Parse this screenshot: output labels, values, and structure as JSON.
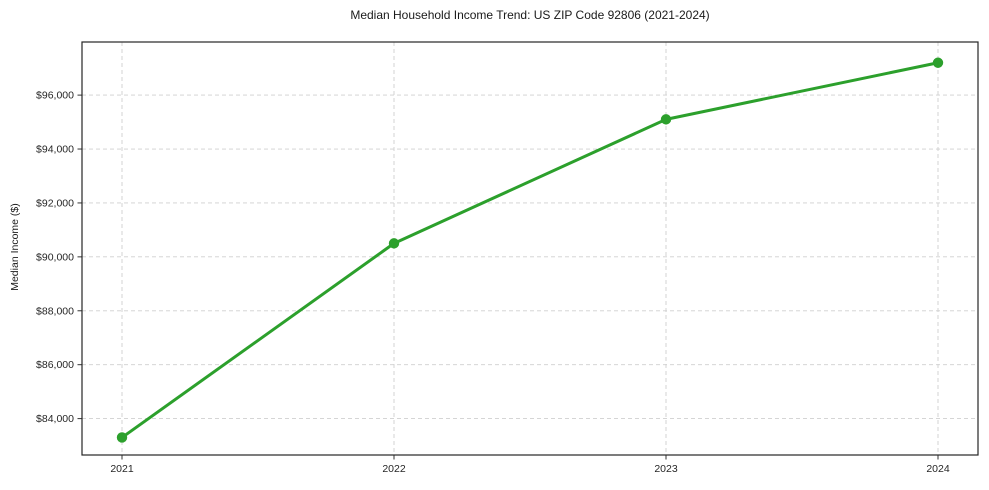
{
  "chart_data": {
    "type": "line",
    "title": "Median Household Income Trend: US ZIP Code 92806 (2021-2024)",
    "xlabel": "",
    "ylabel": "Median Income ($)",
    "x": [
      2021,
      2022,
      2023,
      2024
    ],
    "xtick_labels": [
      "2021",
      "2022",
      "2023",
      "2024"
    ],
    "series": [
      {
        "name": "Median Household Income",
        "values": [
          83300,
          90500,
          95100,
          97200
        ]
      }
    ],
    "yticks": [
      84000,
      86000,
      88000,
      90000,
      92000,
      94000,
      96000
    ],
    "ytick_labels": [
      "$84,000",
      "$86,000",
      "$88,000",
      "$90,000",
      "$92,000",
      "$94,000",
      "$96,000"
    ],
    "ylim": [
      82650,
      97970
    ],
    "grid": true,
    "legend": false,
    "line_color": "#2ca02c",
    "marker_color": "#2ca02c",
    "grid_color": "#cfcfcf",
    "background_color": "#ffffff"
  }
}
